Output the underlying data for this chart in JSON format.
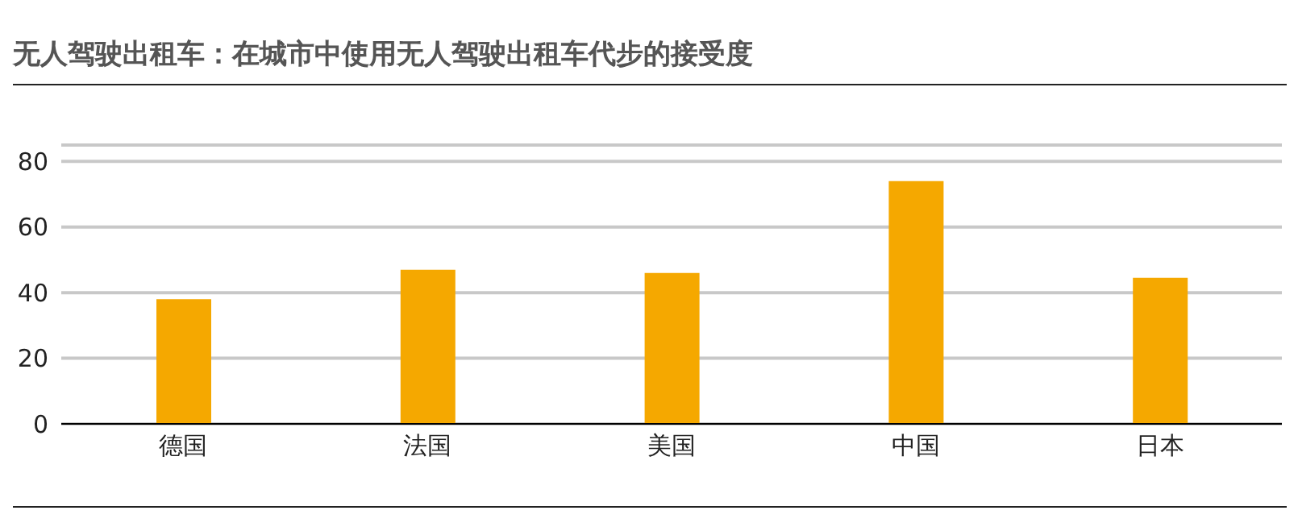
{
  "chart_data": {
    "type": "bar",
    "title": "无人驾驶出租车：在城市中使用无人驾驶出租车代步的接受度",
    "categories": [
      "德国",
      "法国",
      "美国",
      "中国",
      "日本"
    ],
    "values": [
      38,
      47,
      46,
      74,
      44.5
    ],
    "color": "#f5a800",
    "ylim": [
      0,
      85
    ],
    "yticks": [
      0,
      20,
      40,
      60,
      80
    ],
    "grid": "y"
  }
}
